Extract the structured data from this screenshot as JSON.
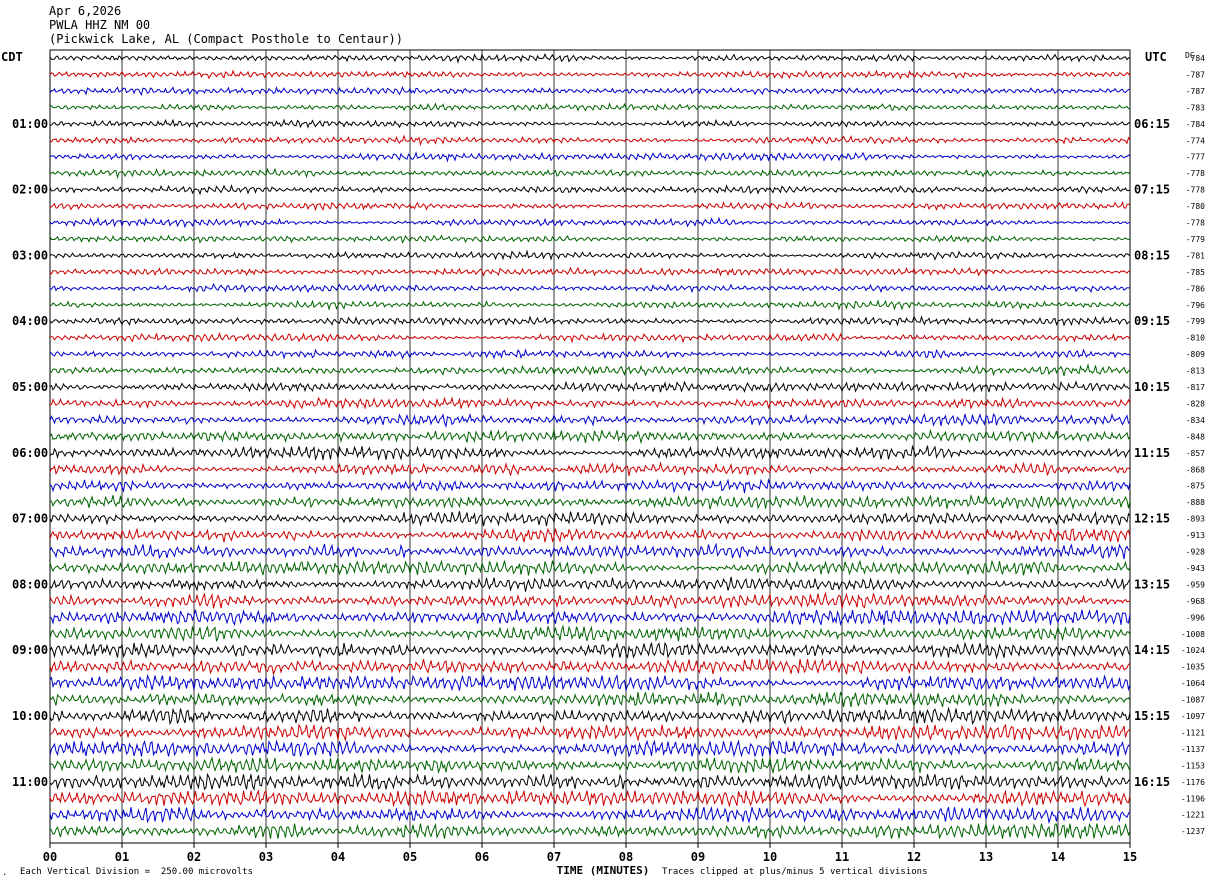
{
  "header": {
    "date": "Apr 6,2026",
    "station": "PWLA HHZ NM 00",
    "location": "(Pickwick Lake, AL (Compact Posthole to Centaur))"
  },
  "left_tz": "CDT",
  "right_tz": "UTC",
  "dc_label": "DC",
  "footer": {
    "scale": "Each Vertical Division =  250.00 microvolts",
    "clip": "Traces clipped at plus/minus 5 vertical divisions",
    "corner_mark": "."
  },
  "colors": {
    "trace_cycle": [
      "#000000",
      "#cc0000",
      "#0000cc",
      "#006400"
    ],
    "grid": "#000000"
  },
  "chart_data": {
    "type": "line",
    "title": "Apr 6,2026",
    "xlabel": "TIME (MINUTES)",
    "ylabel": "",
    "xlim": [
      0,
      15
    ],
    "x_ticks": [
      "00",
      "01",
      "02",
      "03",
      "04",
      "05",
      "06",
      "07",
      "08",
      "09",
      "10",
      "11",
      "12",
      "13",
      "14",
      "15"
    ],
    "left_time_labels": [
      "01:00",
      "02:00",
      "03:00",
      "04:00",
      "05:00",
      "06:00",
      "07:00",
      "08:00",
      "09:00",
      "10:00",
      "11:00"
    ],
    "right_time_labels": [
      "06:15",
      "07:15",
      "08:15",
      "09:15",
      "10:15",
      "11:15",
      "12:15",
      "13:15",
      "14:15",
      "15:15",
      "16:15"
    ],
    "trace_count": 48,
    "dc_offsets": [
      "784",
      "-787",
      "-787",
      "-783",
      "-784",
      "-774",
      "-777",
      "-778",
      "-778",
      "-780",
      "-778",
      "-779",
      "-781",
      "-785",
      "-786",
      "-796",
      "-799",
      "-810",
      "-809",
      "-813",
      "-817",
      "-828",
      "-834",
      "-848",
      "-857",
      "-868",
      "-875",
      "-888",
      "-893",
      "-913",
      "-928",
      "-943",
      "-959",
      "-968",
      "-996",
      "-1008",
      "-1024",
      "-1035",
      "-1064",
      "-1087",
      "-1097",
      "-1121",
      "-1137",
      "-1153",
      "-1176",
      "-1196",
      "-1221",
      "-1237"
    ],
    "relative_amplitude": [
      0.35,
      0.35,
      0.35,
      0.35,
      0.35,
      0.35,
      0.35,
      0.35,
      0.35,
      0.35,
      0.35,
      0.35,
      0.35,
      0.35,
      0.35,
      0.35,
      0.4,
      0.4,
      0.4,
      0.45,
      0.45,
      0.5,
      0.55,
      0.6,
      0.6,
      0.6,
      0.6,
      0.6,
      0.65,
      0.65,
      0.7,
      0.7,
      0.7,
      0.75,
      0.75,
      0.75,
      0.8,
      0.8,
      0.8,
      0.8,
      0.8,
      0.8,
      0.85,
      0.85,
      0.85,
      0.85,
      0.85,
      0.85
    ]
  }
}
